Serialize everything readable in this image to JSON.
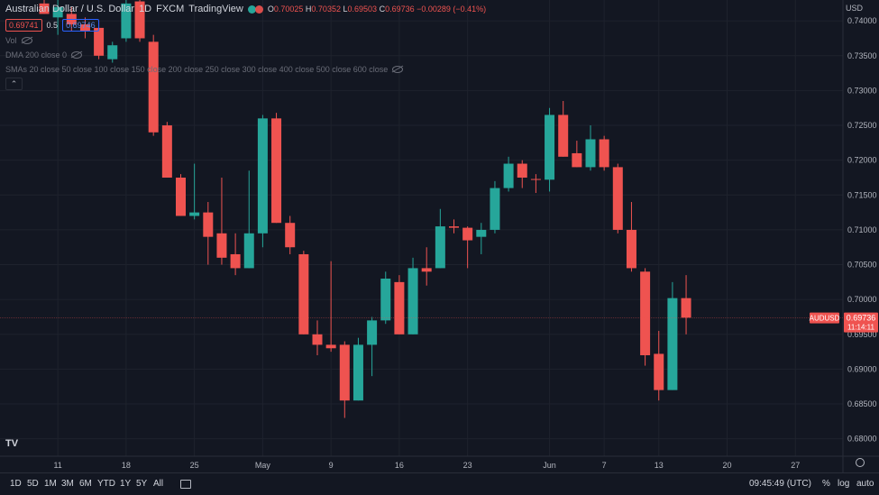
{
  "header": {
    "title": "Australian Dollar / U.S. Dollar",
    "interval": "1D",
    "exchange": "FXCM",
    "source": "TradingView",
    "ohlc": {
      "o_label": "O",
      "o_value": "0.70025",
      "h_label": "H",
      "h_value": "0.70352",
      "l_label": "L",
      "l_value": "0.69503",
      "c_label": "C",
      "c_value": "0.69736",
      "change": "−0.00289 (−0.41%)"
    },
    "sell_price": "0.69741",
    "spread": "0.5",
    "buy_price": "0.69746"
  },
  "indicators": {
    "volume": "Vol",
    "dma": "DMA 200 close 0",
    "smas": "SMAs 20 close 50 close 100 close 150 close 200 close 250 close 300 close 400 close 500 close 600 close"
  },
  "currency_label": "USD",
  "logo_text": "TV",
  "bottom_bar": {
    "timeframes": [
      "1D",
      "5D",
      "1M",
      "3M",
      "6M",
      "YTD",
      "1Y",
      "5Y",
      "All"
    ],
    "clock": "09:45:49 (UTC)",
    "percent": "%",
    "log": "log",
    "auto": "auto"
  },
  "colors": {
    "up": "#26a69a",
    "down": "#ef5350",
    "background": "#131722"
  },
  "chart_data": {
    "type": "candlestick",
    "symbol_tag": "AUDUSD",
    "last_price": "0.69736",
    "countdown": "11:14:11",
    "ylim": [
      0.6775,
      0.743
    ],
    "y_ticks": [
      "0.74000",
      "0.73500",
      "0.73000",
      "0.72500",
      "0.72000",
      "0.71500",
      "0.71000",
      "0.70500",
      "0.70000",
      "0.69500",
      "0.69000",
      "0.68500",
      "0.68000"
    ],
    "x_ticks": [
      "11",
      "18",
      "25",
      "May",
      "9",
      "16",
      "23",
      "Jun",
      "7",
      "13",
      "20",
      "27"
    ],
    "candles": [
      {
        "o": 0.7425,
        "h": 0.7435,
        "l": 0.741,
        "c": 0.741
      },
      {
        "o": 0.7405,
        "h": 0.743,
        "l": 0.738,
        "c": 0.742
      },
      {
        "o": 0.741,
        "h": 0.742,
        "l": 0.7385,
        "c": 0.7395
      },
      {
        "o": 0.7395,
        "h": 0.7405,
        "l": 0.7375,
        "c": 0.7385
      },
      {
        "o": 0.739,
        "h": 0.74,
        "l": 0.7345,
        "c": 0.735
      },
      {
        "o": 0.7345,
        "h": 0.737,
        "l": 0.734,
        "c": 0.7365
      },
      {
        "o": 0.7375,
        "h": 0.743,
        "l": 0.737,
        "c": 0.7425
      },
      {
        "o": 0.7428,
        "h": 0.744,
        "l": 0.737,
        "c": 0.7375
      },
      {
        "o": 0.737,
        "h": 0.738,
        "l": 0.7235,
        "c": 0.724
      },
      {
        "o": 0.725,
        "h": 0.7255,
        "l": 0.7175,
        "c": 0.7175
      },
      {
        "o": 0.7175,
        "h": 0.718,
        "l": 0.712,
        "c": 0.712
      },
      {
        "o": 0.712,
        "h": 0.7195,
        "l": 0.7115,
        "c": 0.7125
      },
      {
        "o": 0.7125,
        "h": 0.714,
        "l": 0.705,
        "c": 0.709
      },
      {
        "o": 0.7095,
        "h": 0.7175,
        "l": 0.705,
        "c": 0.706
      },
      {
        "o": 0.7065,
        "h": 0.7095,
        "l": 0.7035,
        "c": 0.7045
      },
      {
        "o": 0.7045,
        "h": 0.7185,
        "l": 0.7045,
        "c": 0.7095
      },
      {
        "o": 0.7095,
        "h": 0.7265,
        "l": 0.7075,
        "c": 0.726
      },
      {
        "o": 0.726,
        "h": 0.7268,
        "l": 0.711,
        "c": 0.711
      },
      {
        "o": 0.711,
        "h": 0.712,
        "l": 0.7065,
        "c": 0.7075
      },
      {
        "o": 0.7065,
        "h": 0.707,
        "l": 0.695,
        "c": 0.695
      },
      {
        "o": 0.695,
        "h": 0.697,
        "l": 0.692,
        "c": 0.6935
      },
      {
        "o": 0.6935,
        "h": 0.7055,
        "l": 0.6925,
        "c": 0.693
      },
      {
        "o": 0.6935,
        "h": 0.694,
        "l": 0.683,
        "c": 0.6855
      },
      {
        "o": 0.6855,
        "h": 0.6945,
        "l": 0.6855,
        "c": 0.6935
      },
      {
        "o": 0.6935,
        "h": 0.6975,
        "l": 0.689,
        "c": 0.697
      },
      {
        "o": 0.697,
        "h": 0.704,
        "l": 0.6965,
        "c": 0.703
      },
      {
        "o": 0.7025,
        "h": 0.7035,
        "l": 0.695,
        "c": 0.695
      },
      {
        "o": 0.695,
        "h": 0.706,
        "l": 0.695,
        "c": 0.7045
      },
      {
        "o": 0.7045,
        "h": 0.7075,
        "l": 0.702,
        "c": 0.704
      },
      {
        "o": 0.7045,
        "h": 0.713,
        "l": 0.7045,
        "c": 0.7105
      },
      {
        "o": 0.7105,
        "h": 0.7115,
        "l": 0.7095,
        "c": 0.7103
      },
      {
        "o": 0.7103,
        "h": 0.7105,
        "l": 0.7045,
        "c": 0.7085
      },
      {
        "o": 0.709,
        "h": 0.711,
        "l": 0.7065,
        "c": 0.71
      },
      {
        "o": 0.71,
        "h": 0.717,
        "l": 0.7095,
        "c": 0.716
      },
      {
        "o": 0.716,
        "h": 0.7205,
        "l": 0.7155,
        "c": 0.7195
      },
      {
        "o": 0.7195,
        "h": 0.72,
        "l": 0.716,
        "c": 0.7175
      },
      {
        "o": 0.7173,
        "h": 0.718,
        "l": 0.7153,
        "c": 0.7172
      },
      {
        "o": 0.7172,
        "h": 0.7275,
        "l": 0.7155,
        "c": 0.7265
      },
      {
        "o": 0.7265,
        "h": 0.7285,
        "l": 0.7205,
        "c": 0.7205
      },
      {
        "o": 0.721,
        "h": 0.7228,
        "l": 0.719,
        "c": 0.719
      },
      {
        "o": 0.719,
        "h": 0.725,
        "l": 0.7185,
        "c": 0.723
      },
      {
        "o": 0.723,
        "h": 0.7235,
        "l": 0.7185,
        "c": 0.719
      },
      {
        "o": 0.719,
        "h": 0.7195,
        "l": 0.7095,
        "c": 0.71
      },
      {
        "o": 0.71,
        "h": 0.714,
        "l": 0.704,
        "c": 0.7045
      },
      {
        "o": 0.704,
        "h": 0.7045,
        "l": 0.6905,
        "c": 0.692
      },
      {
        "o": 0.6922,
        "h": 0.6955,
        "l": 0.6855,
        "c": 0.687
      },
      {
        "o": 0.687,
        "h": 0.7025,
        "l": 0.687,
        "c": 0.7002
      },
      {
        "o": 0.7002,
        "h": 0.7035,
        "l": 0.695,
        "c": 0.6974
      }
    ]
  }
}
